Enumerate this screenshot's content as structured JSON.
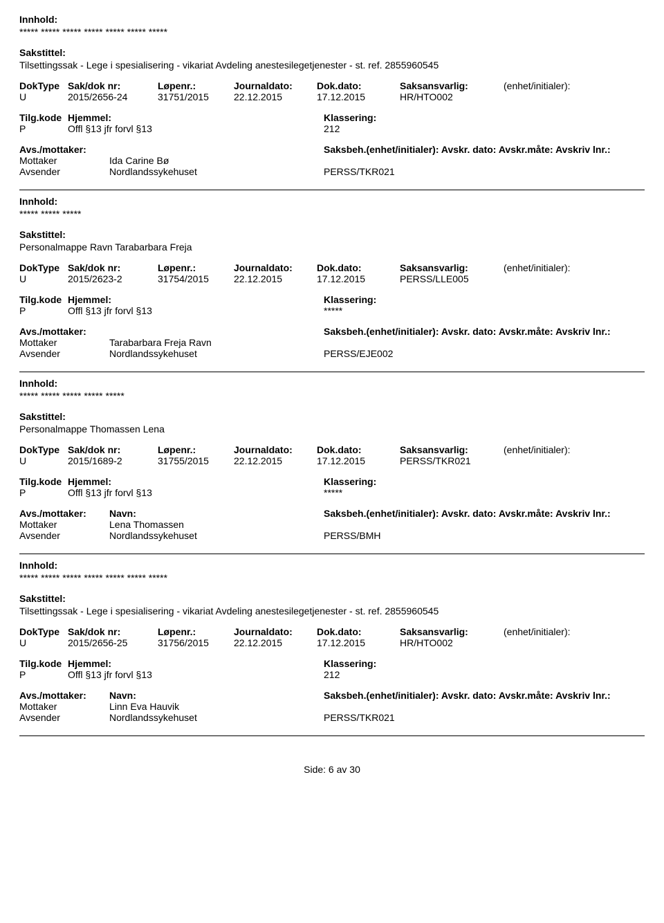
{
  "font": {
    "family": "Arial, Helvetica, sans-serif",
    "size_pt": 10,
    "bold_weight": 700
  },
  "colors": {
    "text": "#000000",
    "background": "#ffffff",
    "divider": "#000000"
  },
  "labels": {
    "innhold": "Innhold:",
    "sakstittel": "Sakstittel:",
    "doktype": "DokType",
    "sakdok": "Sak/dok nr:",
    "lopenr": "Løpenr.:",
    "journaldato": "Journaldato:",
    "dokdato": "Dok.dato:",
    "saksansvarlig": "Saksansvarlig:",
    "enhet": "(enhet/initialer):",
    "tilgkode": "Tilg.kode",
    "hjemmel": "Hjemmel:",
    "klassering": "Klassering:",
    "avs_mottaker": "Avs./mottaker:",
    "navn": "Navn:",
    "saksbeh_line": "Saksbeh.(enhet/initialer): Avskr. dato: Avskr.måte: Avskriv lnr.:",
    "mottaker": "Mottaker",
    "avsender": "Avsender"
  },
  "records": [
    {
      "innhold": "***** ***** ***** ***** ***** ***** *****",
      "sakstittel": "Tilsettingssak - Lege i spesialisering - vikariat Avdeling anestesilegetjenester - st. ref. 2855960545",
      "doktype": "U",
      "sakdok": "2015/2656-24",
      "lopenr": "31751/2015",
      "journaldato": "22.12.2015",
      "dokdato": "17.12.2015",
      "saksansvarlig": "HR/HTO002",
      "enhet": "",
      "tilgkode": "P",
      "hjemmel": "Offl §13 jfr forvl §13",
      "klassering": "212",
      "mottaker_navn": "Ida Carine Bø",
      "avsender_navn": "Nordlandssykehuset",
      "avsender_ref": "PERSS/TKR021",
      "show_navn_label": false
    },
    {
      "innhold": "***** ***** *****",
      "sakstittel": "Personalmappe Ravn Tarabarbara Freja",
      "doktype": "U",
      "sakdok": "2015/2623-2",
      "lopenr": "31754/2015",
      "journaldato": "22.12.2015",
      "dokdato": "17.12.2015",
      "saksansvarlig": "PERSS/LLE005",
      "enhet": "",
      "tilgkode": "P",
      "hjemmel": "Offl §13 jfr forvl §13",
      "klassering": "*****",
      "mottaker_navn": "Tarabarbara Freja Ravn",
      "avsender_navn": "Nordlandssykehuset",
      "avsender_ref": "PERSS/EJE002",
      "show_navn_label": false
    },
    {
      "innhold": "***** ***** ***** ***** *****",
      "sakstittel": "Personalmappe Thomassen Lena",
      "doktype": "U",
      "sakdok": "2015/1689-2",
      "lopenr": "31755/2015",
      "journaldato": "22.12.2015",
      "dokdato": "17.12.2015",
      "saksansvarlig": "PERSS/TKR021",
      "enhet": "",
      "tilgkode": "P",
      "hjemmel": "Offl §13 jfr forvl §13",
      "klassering": "*****",
      "mottaker_navn": "Lena Thomassen",
      "avsender_navn": "Nordlandssykehuset",
      "avsender_ref": "PERSS/BMH",
      "show_navn_label": true
    },
    {
      "innhold": "***** ***** ***** ***** ***** ***** *****",
      "sakstittel": "Tilsettingssak - Lege i spesialisering - vikariat Avdeling anestesilegetjenester - st. ref. 2855960545",
      "doktype": "U",
      "sakdok": "2015/2656-25",
      "lopenr": "31756/2015",
      "journaldato": "22.12.2015",
      "dokdato": "17.12.2015",
      "saksansvarlig": "HR/HTO002",
      "enhet": "",
      "tilgkode": "P",
      "hjemmel": "Offl §13 jfr forvl §13",
      "klassering": "212",
      "mottaker_navn": "Linn Eva Hauvik",
      "avsender_navn": "Nordlandssykehuset",
      "avsender_ref": "PERSS/TKR021",
      "show_navn_label": true
    }
  ],
  "footer": "Side: 6 av 30"
}
